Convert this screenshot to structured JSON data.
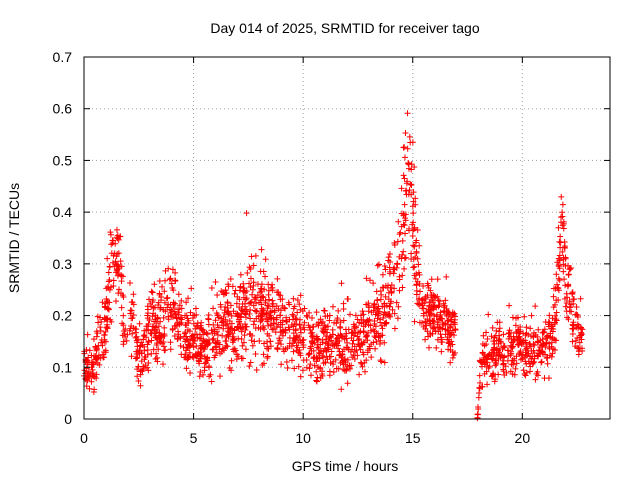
{
  "chart_data": {
    "type": "scatter",
    "title": "Day 014 of 2025, SRMTID for receiver tago",
    "xlabel": "GPS time / hours",
    "ylabel": "SRMTID / TECUs",
    "xlim": [
      0,
      24
    ],
    "ylim": [
      0,
      0.7
    ],
    "x_ticks": [
      0,
      5,
      10,
      15,
      20
    ],
    "x_tick_labels": [
      "0",
      "5",
      "10",
      "15",
      "20"
    ],
    "y_ticks": [
      0,
      0.1,
      0.2,
      0.3,
      0.4,
      0.5,
      0.6,
      0.7
    ],
    "y_tick_labels": [
      "0",
      "0.1",
      "0.2",
      "0.3",
      "0.4",
      "0.5",
      "0.6",
      "0.7"
    ],
    "grid": true,
    "marker": "+",
    "colors": {
      "series": "#ff0000",
      "grid": "#a0a0a0",
      "axis": "#000000"
    },
    "profile_hours": [
      0.0,
      0.5,
      1.0,
      1.3,
      1.6,
      1.9,
      2.2,
      2.6,
      3.0,
      3.3,
      3.6,
      4.0,
      4.4,
      4.8,
      5.2,
      5.6,
      6.0,
      6.4,
      6.8,
      7.2,
      7.6,
      8.0,
      8.5,
      9.0,
      9.5,
      10.0,
      10.5,
      11.0,
      11.5,
      12.0,
      12.5,
      13.0,
      13.5,
      14.0,
      14.3,
      14.6,
      14.8,
      15.0,
      15.2,
      15.5,
      16.0,
      16.5,
      16.9,
      17.95,
      18.1,
      18.5,
      19.0,
      19.5,
      20.0,
      20.5,
      21.0,
      21.3,
      21.6,
      21.8,
      22.0,
      22.2,
      22.5,
      22.7
    ],
    "profile_values": [
      0.1,
      0.11,
      0.2,
      0.3,
      0.3,
      0.17,
      0.19,
      0.12,
      0.17,
      0.19,
      0.2,
      0.22,
      0.19,
      0.15,
      0.15,
      0.13,
      0.16,
      0.2,
      0.18,
      0.2,
      0.22,
      0.21,
      0.2,
      0.18,
      0.17,
      0.16,
      0.14,
      0.15,
      0.14,
      0.14,
      0.16,
      0.18,
      0.2,
      0.24,
      0.29,
      0.36,
      0.46,
      0.38,
      0.28,
      0.2,
      0.2,
      0.17,
      0.17,
      0.0,
      0.1,
      0.12,
      0.14,
      0.14,
      0.15,
      0.13,
      0.13,
      0.16,
      0.22,
      0.4,
      0.25,
      0.21,
      0.17,
      0.17
    ],
    "profile_spread": [
      0.03,
      0.03,
      0.06,
      0.05,
      0.05,
      0.05,
      0.05,
      0.04,
      0.05,
      0.06,
      0.06,
      0.06,
      0.05,
      0.05,
      0.04,
      0.04,
      0.05,
      0.06,
      0.06,
      0.06,
      0.07,
      0.06,
      0.06,
      0.05,
      0.05,
      0.05,
      0.05,
      0.05,
      0.04,
      0.05,
      0.05,
      0.05,
      0.06,
      0.07,
      0.08,
      0.1,
      0.1,
      0.1,
      0.06,
      0.04,
      0.04,
      0.04,
      0.04,
      0.0,
      0.03,
      0.04,
      0.04,
      0.04,
      0.04,
      0.04,
      0.04,
      0.05,
      0.06,
      0.06,
      0.06,
      0.05,
      0.04,
      0.04
    ],
    "segments": [
      [
        0.0,
        16.95
      ],
      [
        17.95,
        17.99
      ],
      [
        18.0,
        22.75
      ]
    ],
    "gap": [
      16.95,
      17.95
    ],
    "point_count": 2200
  }
}
